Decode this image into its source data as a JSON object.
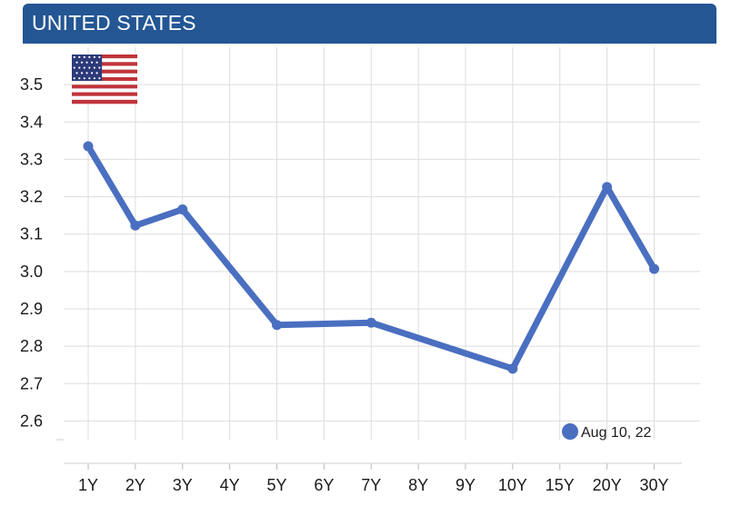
{
  "header": {
    "title": "UNITED STATES"
  },
  "flag": {
    "icon": "us-flag-icon"
  },
  "chart_data": {
    "type": "line",
    "categories": [
      "1Y",
      "2Y",
      "3Y",
      "4Y",
      "5Y",
      "6Y",
      "7Y",
      "8Y",
      "9Y",
      "10Y",
      "15Y",
      "20Y",
      "30Y"
    ],
    "series": [
      {
        "name": "Aug 10, 22",
        "color": "#4a6fc0",
        "points": [
          {
            "x": "1Y",
            "y": 3.335
          },
          {
            "x": "2Y",
            "y": 3.123
          },
          {
            "x": "3Y",
            "y": 3.166
          },
          {
            "x": "5Y",
            "y": 2.857
          },
          {
            "x": "7Y",
            "y": 2.863
          },
          {
            "x": "10Y",
            "y": 2.74
          },
          {
            "x": "20Y",
            "y": 3.226
          },
          {
            "x": "30Y",
            "y": 3.007
          }
        ]
      }
    ],
    "yticks": [
      "2.6",
      "2.7",
      "2.8",
      "2.9",
      "3.0",
      "3.1",
      "3.2",
      "3.3",
      "3.4",
      "3.5"
    ],
    "ylim": [
      2.55,
      3.6
    ],
    "grid": true,
    "legend": "bottom-right"
  }
}
